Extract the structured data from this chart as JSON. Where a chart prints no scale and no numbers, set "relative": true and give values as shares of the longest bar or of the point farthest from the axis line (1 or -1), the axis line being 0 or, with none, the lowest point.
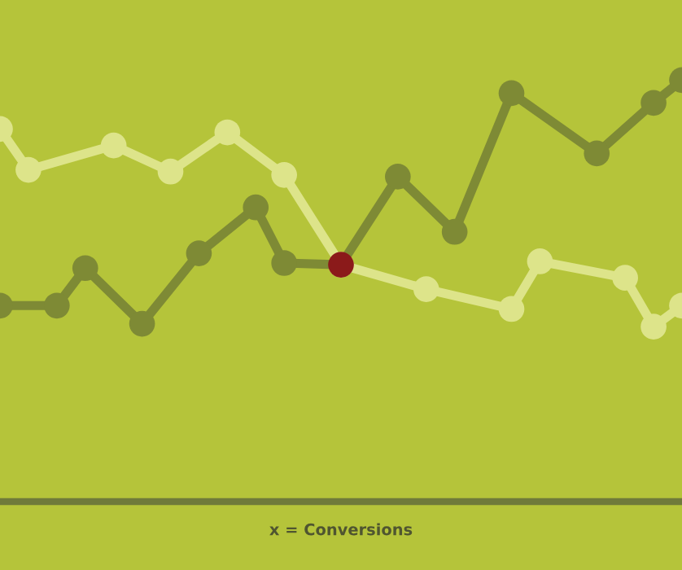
{
  "chart_data": {
    "type": "line",
    "relative": true,
    "xlabel": "x = Conversions",
    "marker": "circle",
    "line_style": "solid",
    "categories": [
      null,
      null,
      null,
      null,
      null,
      null,
      null,
      null,
      null,
      null,
      null,
      null,
      null,
      null,
      null,
      null,
      null,
      null,
      null,
      null,
      null,
      null,
      null,
      null,
      null
    ],
    "series": [
      {
        "color": "#dde48a",
        "values": [
          0.884,
          0.787,
          null,
          null,
          0.845,
          null,
          0.783,
          null,
          0.876,
          null,
          0.775,
          null,
          0.562,
          null,
          null,
          0.504,
          null,
          null,
          0.457,
          0.57,
          null,
          null,
          0.531,
          0.415,
          0.465
        ]
      },
      {
        "color": "#7e8a35",
        "colors": [
          "#7e8a35",
          "#7e8a35",
          "#7e8a35",
          "#7e8a35",
          "#7e8a35",
          "#7e8a35",
          "#7e8a35",
          "#7e8a35",
          "#7e8a35",
          "#7e8a35",
          "#7e8a35",
          "#7e8a35",
          "#8b1a1a",
          "#7e8a35",
          "#7e8a35",
          "#7e8a35",
          "#7e8a35",
          "#7e8a35",
          "#7e8a35",
          "#7e8a35",
          "#7e8a35",
          "#7e8a35",
          "#7e8a35",
          "#7e8a35",
          "#7e8a35"
        ],
        "values": [
          0.465,
          null,
          0.465,
          0.554,
          null,
          0.422,
          null,
          0.589,
          null,
          0.698,
          0.566,
          null,
          0.562,
          null,
          0.771,
          null,
          0.64,
          null,
          0.969,
          null,
          null,
          0.826,
          null,
          0.946,
          1.0
        ]
      }
    ]
  }
}
